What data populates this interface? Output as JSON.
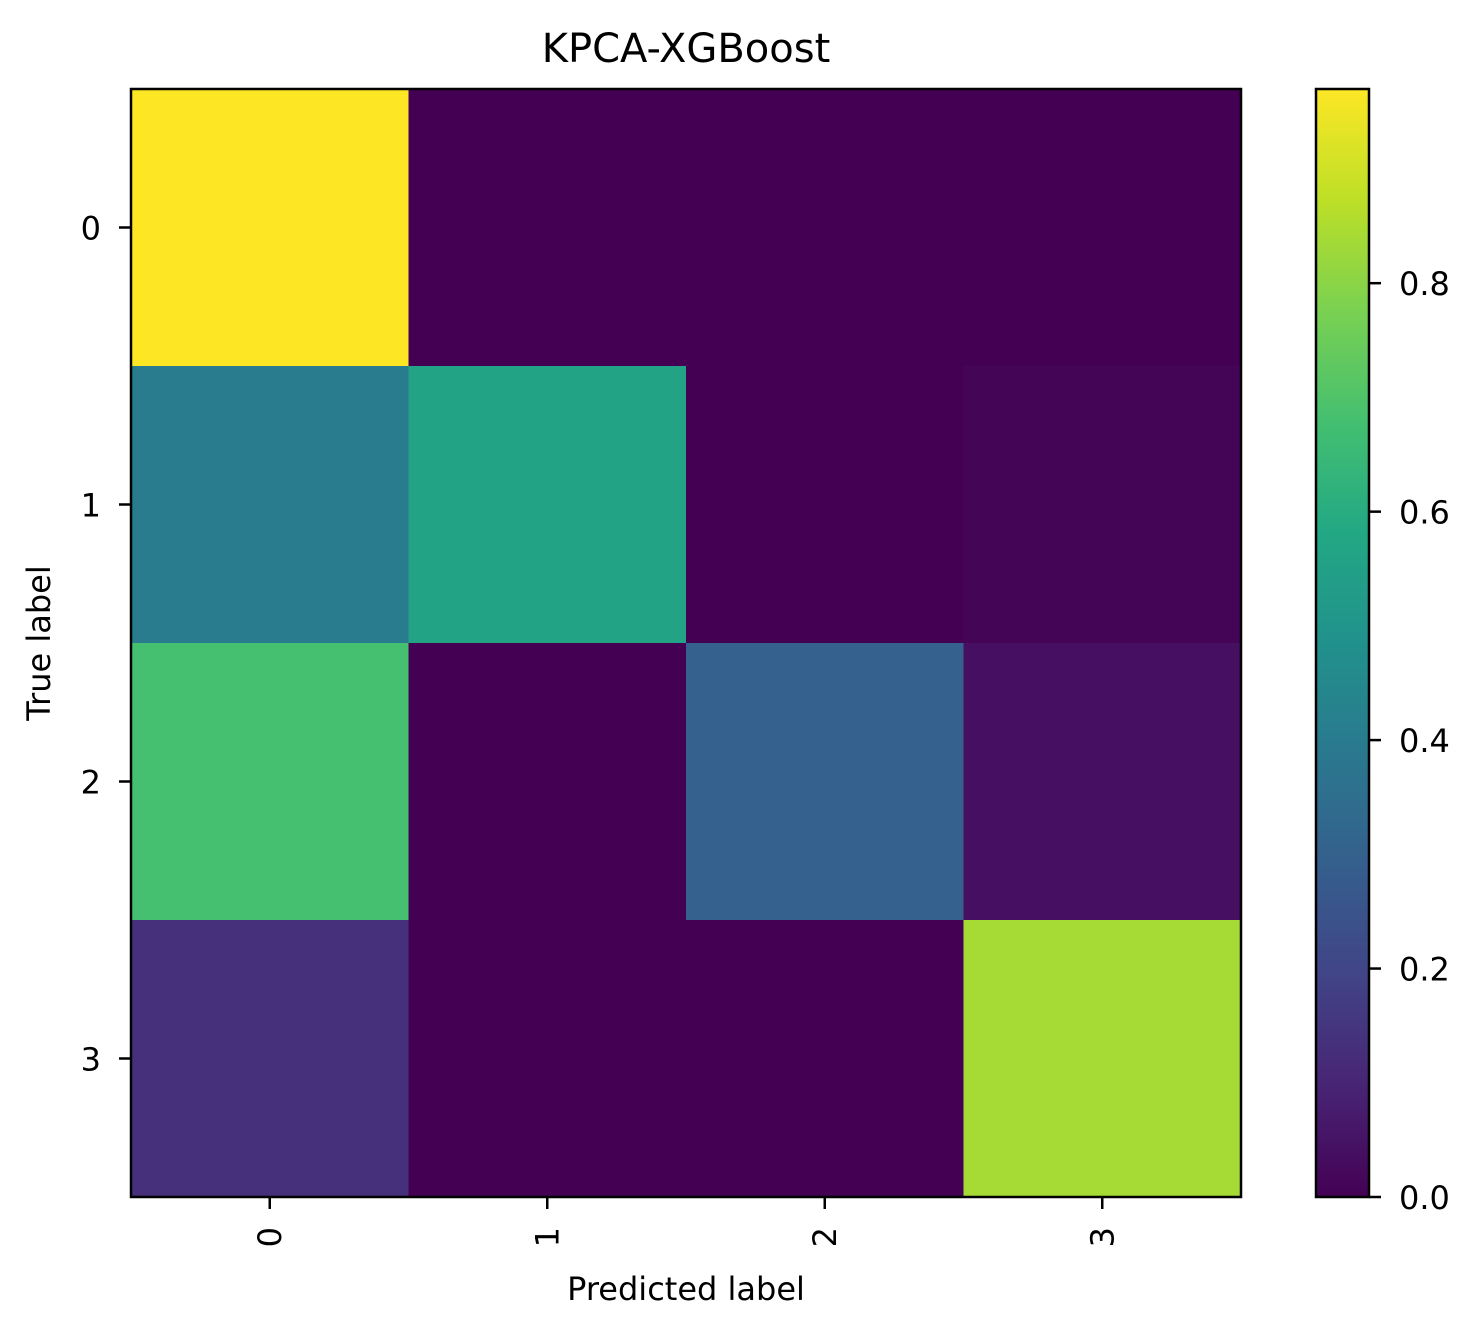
{
  "chart_data": {
    "type": "heatmap",
    "title": "KPCA-XGBoost",
    "xlabel": "Predicted label",
    "ylabel": "True label",
    "x_categories": [
      "0",
      "1",
      "2",
      "3"
    ],
    "y_categories": [
      "0",
      "1",
      "2",
      "3"
    ],
    "values": [
      [
        0.97,
        0.0,
        0.0,
        0.0
      ],
      [
        0.4,
        0.56,
        0.0,
        0.01
      ],
      [
        0.68,
        0.0,
        0.3,
        0.04
      ],
      [
        0.13,
        0.0,
        0.0,
        0.84
      ]
    ],
    "colormap": "viridis",
    "vmin": 0.0,
    "vmax": 0.97,
    "colorbar_ticks": [
      0.0,
      0.2,
      0.4,
      0.6,
      0.8
    ],
    "colorbar_tick_labels": [
      "0.0",
      "0.2",
      "0.4",
      "0.6",
      "0.8"
    ],
    "x_tick_rotation": "vertical",
    "grid": false
  }
}
